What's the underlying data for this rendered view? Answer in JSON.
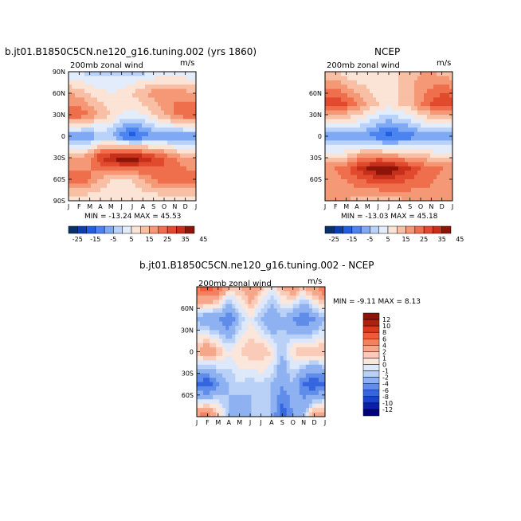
{
  "colors": {
    "full_scale": [
      "#08306b",
      "#0b3fb0",
      "#1f5fe0",
      "#4b84f0",
      "#7fa8f5",
      "#b9d2f9",
      "#e2ecfb",
      "#fbe3d6",
      "#f8bfa4",
      "#f49876",
      "#ef6f4d",
      "#e24a2e",
      "#c6301b",
      "#8d1408"
    ],
    "diff_scale": [
      "#8d1408",
      "#b0200f",
      "#d9391d",
      "#ef5b36",
      "#f4805f",
      "#f6a78a",
      "#f9cbb8",
      "#fbe6dc",
      "#dde8fb",
      "#b9d0f7",
      "#8eb1f1",
      "#5f8de9",
      "#3566e0",
      "#1844c9",
      "#0a20a8",
      "#000080"
    ]
  },
  "panels": [
    {
      "id": "model",
      "title": "b.jt01.B1850C5CN.ne120_g16.tuning.002 (yrs 1860)",
      "var_label": "200mb zonal wind",
      "units": "m/s",
      "stats": "MIN = -13.24 MAX =  45.53",
      "y_ticks": [
        "90N",
        "60N",
        "30N",
        "0",
        "30S",
        "60S",
        "90S"
      ],
      "x_ticks": [
        "J",
        "F",
        "M",
        "A",
        "M",
        "J",
        "J",
        "A",
        "S",
        "O",
        "N",
        "D",
        "J"
      ],
      "colorbar_labels": [
        "-25",
        "-15",
        "-5",
        "5",
        "15",
        "25",
        "35",
        "45"
      ]
    },
    {
      "id": "ncep",
      "title": "NCEP",
      "var_label": "200mb zonal wind",
      "units": "m/s",
      "stats": "MIN = -13.03 MAX =  45.18",
      "y_ticks": [
        "60N",
        "30N",
        "0",
        "30S",
        "60S"
      ],
      "x_ticks": [
        "J",
        "F",
        "M",
        "A",
        "M",
        "J",
        "J",
        "A",
        "S",
        "O",
        "N",
        "D",
        "J"
      ],
      "colorbar_labels": [
        "-25",
        "-15",
        "-5",
        "5",
        "15",
        "25",
        "35",
        "45"
      ]
    },
    {
      "id": "diff",
      "title": "b.jt01.B1850C5CN.ne120_g16.tuning.002 - NCEP",
      "var_label": "200mb zonal wind",
      "units": "m/s",
      "stats": "MIN =  -9.11 MAX =   8.13",
      "y_ticks": [
        "60N",
        "30N",
        "0",
        "30S",
        "60S"
      ],
      "x_ticks": [
        "J",
        "F",
        "M",
        "A",
        "M",
        "J",
        "J",
        "A",
        "S",
        "O",
        "N",
        "D",
        "J"
      ],
      "colorbar_labels": [
        "12",
        "10",
        "8",
        "6",
        "4",
        "2",
        "1",
        "0",
        "-1",
        "-2",
        "-4",
        "-6",
        "-8",
        "-10",
        "-12"
      ]
    }
  ],
  "chart_data": [
    {
      "type": "heatmap",
      "title": "b.jt01.B1850C5CN.ne120_g16.tuning.002 (yrs 1860)",
      "subtitle": "200mb zonal wind",
      "units": "m/s",
      "x": [
        "J",
        "F",
        "M",
        "A",
        "M",
        "J",
        "J",
        "A",
        "S",
        "O",
        "N",
        "D",
        "J"
      ],
      "y": [
        "90N",
        "60N",
        "30N",
        "0",
        "30S",
        "60S",
        "90S"
      ],
      "values": [
        [
          5,
          5,
          3,
          3,
          3,
          3,
          3,
          3,
          5,
          5,
          5,
          5,
          5
        ],
        [
          20,
          18,
          14,
          12,
          10,
          12,
          15,
          20,
          22,
          25,
          25,
          22,
          20
        ],
        [
          30,
          30,
          25,
          20,
          15,
          10,
          8,
          10,
          15,
          20,
          25,
          30,
          30
        ],
        [
          -5,
          -5,
          -5,
          0,
          0,
          -10,
          -13,
          -10,
          -5,
          -5,
          -5,
          -5,
          -5
        ],
        [
          20,
          20,
          25,
          35,
          40,
          45,
          45,
          40,
          35,
          30,
          25,
          20,
          20
        ],
        [
          30,
          30,
          25,
          20,
          15,
          15,
          15,
          20,
          25,
          30,
          30,
          30,
          30
        ],
        [
          10,
          10,
          10,
          10,
          10,
          10,
          10,
          10,
          10,
          10,
          10,
          10,
          10
        ]
      ],
      "min": -13.24,
      "max": 45.53,
      "colorbar": [
        -25,
        -15,
        -5,
        5,
        15,
        25,
        35,
        45
      ]
    },
    {
      "type": "heatmap",
      "title": "NCEP",
      "subtitle": "200mb zonal wind",
      "units": "m/s",
      "x": [
        "J",
        "F",
        "M",
        "A",
        "M",
        "J",
        "J",
        "A",
        "S",
        "O",
        "N",
        "D",
        "J"
      ],
      "y": [
        "60N",
        "30N",
        "0",
        "30S",
        "60S"
      ],
      "values": [
        [
          15,
          15,
          12,
          10,
          10,
          10,
          12,
          15,
          18,
          20,
          20,
          18,
          15
        ],
        [
          35,
          35,
          30,
          25,
          20,
          15,
          12,
          15,
          18,
          25,
          30,
          35,
          35
        ],
        [
          -5,
          -5,
          -5,
          -3,
          -5,
          -10,
          -13,
          -10,
          -8,
          -5,
          -5,
          -5,
          -5
        ],
        [
          25,
          25,
          28,
          35,
          40,
          45,
          45,
          40,
          35,
          30,
          28,
          25,
          25
        ],
        [
          20,
          20,
          20,
          18,
          15,
          15,
          15,
          18,
          20,
          22,
          22,
          20,
          20
        ]
      ],
      "min": -13.03,
      "max": 45.18,
      "colorbar": [
        -25,
        -15,
        -5,
        5,
        15,
        25,
        35,
        45
      ]
    },
    {
      "type": "heatmap",
      "title": "b.jt01.B1850C5CN.ne120_g16.tuning.002 - NCEP",
      "subtitle": "200mb zonal wind",
      "units": "m/s",
      "x": [
        "J",
        "F",
        "M",
        "A",
        "M",
        "J",
        "J",
        "A",
        "S",
        "O",
        "N",
        "D",
        "J"
      ],
      "y": [
        "60N",
        "30N",
        "0",
        "30S",
        "60S"
      ],
      "values": [
        [
          6,
          8,
          6,
          2,
          2,
          4,
          2,
          0,
          2,
          4,
          2,
          4,
          6
        ],
        [
          -2,
          -4,
          -4,
          -6,
          -2,
          0,
          -2,
          -4,
          -2,
          -4,
          -6,
          -4,
          -2
        ],
        [
          2,
          4,
          2,
          0,
          1,
          2,
          2,
          1,
          -2,
          1,
          2,
          2,
          2
        ],
        [
          -6,
          -8,
          -4,
          -2,
          -1,
          -2,
          -1,
          -2,
          -4,
          -2,
          -6,
          -8,
          -6
        ],
        [
          4,
          6,
          2,
          -2,
          -4,
          -2,
          -1,
          -2,
          -8,
          -4,
          -2,
          4,
          4
        ]
      ],
      "min": -9.11,
      "max": 8.13,
      "colorbar": [
        12,
        10,
        8,
        6,
        4,
        2,
        1,
        0,
        -1,
        -2,
        -4,
        -6,
        -8,
        -10,
        -12
      ]
    }
  ]
}
